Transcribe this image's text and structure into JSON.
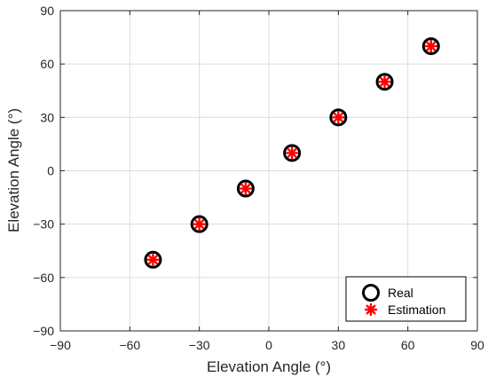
{
  "chart_data": {
    "type": "scatter",
    "xlabel": "Elevation Angle (°)",
    "ylabel": "Elevation Angle (°)",
    "xlim": [
      -90,
      90
    ],
    "ylim": [
      -90,
      90
    ],
    "xticks": [
      "−90",
      "−60",
      "−30",
      "0",
      "30",
      "60",
      "90"
    ],
    "yticks": [
      "90",
      "60",
      "30",
      "0",
      "−30",
      "−60",
      "−90"
    ],
    "xtick_values": [
      -90,
      -60,
      -30,
      0,
      30,
      60,
      90
    ],
    "ytick_values": [
      90,
      60,
      30,
      0,
      -30,
      -60,
      -90
    ],
    "grid": true,
    "legend_position": "bottom-right",
    "series": [
      {
        "name": "Real",
        "marker": "circle",
        "color": "#000000",
        "x": [
          -50,
          -30,
          -10,
          10,
          30,
          50,
          70
        ],
        "y": [
          -50,
          -30,
          -10,
          10,
          30,
          50,
          70
        ]
      },
      {
        "name": "Estimation",
        "marker": "asterisk",
        "color": "#ff0000",
        "x": [
          -50,
          -30,
          -10,
          10,
          30,
          50,
          70
        ],
        "y": [
          -50,
          -30,
          -10,
          10,
          30,
          50,
          70
        ]
      }
    ]
  }
}
